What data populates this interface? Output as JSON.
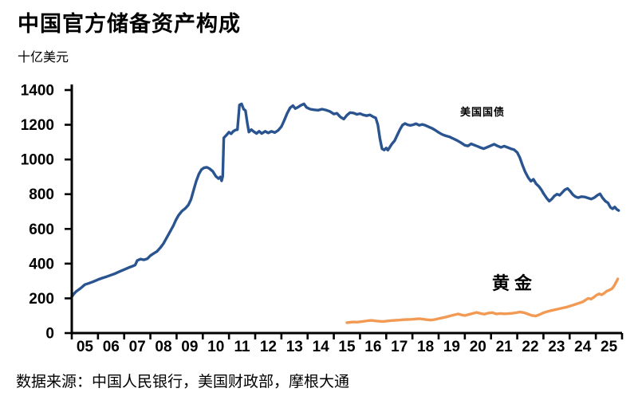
{
  "header": {
    "title": "中国官方储备资产构成",
    "unit_label": "十亿美元"
  },
  "footer": {
    "source": "数据来源：中国人民银行，美国财政部，摩根大通"
  },
  "colors": {
    "us_treasuries_line": "#2a5490",
    "gold_line": "#f29a54",
    "axis": "#000000",
    "text": "#000000",
    "background": "#ffffff"
  },
  "chart_data": {
    "type": "line",
    "title": "中国官方储备资产构成",
    "ylabel": "十亿美元",
    "ylim": [
      0,
      1400
    ],
    "y_ticks": [
      0,
      200,
      400,
      600,
      800,
      1000,
      1200,
      1400
    ],
    "x_tick_labels": [
      "05",
      "06",
      "07",
      "08",
      "09",
      "10",
      "11",
      "12",
      "13",
      "14",
      "15",
      "16",
      "17",
      "18",
      "19",
      "20",
      "21",
      "22",
      "23",
      "24",
      "25"
    ],
    "x_range_years": [
      2005,
      2026
    ],
    "grid": false,
    "legend_position": "inline-labels",
    "series": [
      {
        "name": "美国国债",
        "data_name": "us-treasuries-line",
        "color": "#2a5490",
        "points": [
          [
            2005.0,
            210
          ],
          [
            2005.08,
            226
          ],
          [
            2005.17,
            240
          ],
          [
            2005.33,
            257
          ],
          [
            2005.5,
            279
          ],
          [
            2005.67,
            288
          ],
          [
            2005.83,
            297
          ],
          [
            2006.0,
            308
          ],
          [
            2006.17,
            317
          ],
          [
            2006.33,
            325
          ],
          [
            2006.5,
            334
          ],
          [
            2006.67,
            344
          ],
          [
            2006.83,
            355
          ],
          [
            2007.0,
            366
          ],
          [
            2007.17,
            377
          ],
          [
            2007.33,
            386
          ],
          [
            2007.42,
            392
          ],
          [
            2007.5,
            418
          ],
          [
            2007.62,
            426
          ],
          [
            2007.75,
            422
          ],
          [
            2007.88,
            428
          ],
          [
            2008.0,
            446
          ],
          [
            2008.12,
            458
          ],
          [
            2008.25,
            470
          ],
          [
            2008.38,
            492
          ],
          [
            2008.5,
            516
          ],
          [
            2008.62,
            548
          ],
          [
            2008.75,
            584
          ],
          [
            2008.88,
            620
          ],
          [
            2008.97,
            650
          ],
          [
            2009.08,
            680
          ],
          [
            2009.2,
            702
          ],
          [
            2009.33,
            718
          ],
          [
            2009.45,
            738
          ],
          [
            2009.55,
            770
          ],
          [
            2009.65,
            824
          ],
          [
            2009.75,
            876
          ],
          [
            2009.85,
            916
          ],
          [
            2009.95,
            942
          ],
          [
            2010.05,
            952
          ],
          [
            2010.15,
            955
          ],
          [
            2010.25,
            948
          ],
          [
            2010.38,
            932
          ],
          [
            2010.5,
            903
          ],
          [
            2010.6,
            890
          ],
          [
            2010.67,
            899
          ],
          [
            2010.72,
            877
          ],
          [
            2010.76,
            904
          ],
          [
            2010.8,
            1124
          ],
          [
            2010.9,
            1140
          ],
          [
            2011.0,
            1157
          ],
          [
            2011.08,
            1148
          ],
          [
            2011.17,
            1163
          ],
          [
            2011.25,
            1170
          ],
          [
            2011.32,
            1172
          ],
          [
            2011.4,
            1314
          ],
          [
            2011.48,
            1320
          ],
          [
            2011.56,
            1290
          ],
          [
            2011.63,
            1282
          ],
          [
            2011.7,
            1210
          ],
          [
            2011.76,
            1158
          ],
          [
            2011.85,
            1172
          ],
          [
            2011.95,
            1160
          ],
          [
            2012.05,
            1150
          ],
          [
            2012.15,
            1162
          ],
          [
            2012.25,
            1150
          ],
          [
            2012.38,
            1162
          ],
          [
            2012.5,
            1153
          ],
          [
            2012.62,
            1162
          ],
          [
            2012.75,
            1155
          ],
          [
            2012.88,
            1168
          ],
          [
            2013.0,
            1190
          ],
          [
            2013.1,
            1222
          ],
          [
            2013.22,
            1266
          ],
          [
            2013.33,
            1297
          ],
          [
            2013.44,
            1310
          ],
          [
            2013.53,
            1293
          ],
          [
            2013.62,
            1300
          ],
          [
            2013.74,
            1312
          ],
          [
            2013.86,
            1320
          ],
          [
            2013.96,
            1300
          ],
          [
            2014.1,
            1290
          ],
          [
            2014.25,
            1286
          ],
          [
            2014.4,
            1284
          ],
          [
            2014.55,
            1290
          ],
          [
            2014.7,
            1285
          ],
          [
            2014.85,
            1277
          ],
          [
            2015.0,
            1262
          ],
          [
            2015.12,
            1266
          ],
          [
            2015.25,
            1245
          ],
          [
            2015.38,
            1233
          ],
          [
            2015.5,
            1255
          ],
          [
            2015.62,
            1270
          ],
          [
            2015.75,
            1268
          ],
          [
            2015.88,
            1260
          ],
          [
            2016.0,
            1264
          ],
          [
            2016.12,
            1257
          ],
          [
            2016.25,
            1252
          ],
          [
            2016.38,
            1257
          ],
          [
            2016.5,
            1246
          ],
          [
            2016.6,
            1240
          ],
          [
            2016.68,
            1200
          ],
          [
            2016.76,
            1120
          ],
          [
            2016.84,
            1062
          ],
          [
            2016.92,
            1055
          ],
          [
            2017.0,
            1066
          ],
          [
            2017.06,
            1054
          ],
          [
            2017.14,
            1072
          ],
          [
            2017.22,
            1090
          ],
          [
            2017.32,
            1108
          ],
          [
            2017.42,
            1140
          ],
          [
            2017.52,
            1172
          ],
          [
            2017.62,
            1198
          ],
          [
            2017.72,
            1207
          ],
          [
            2017.82,
            1200
          ],
          [
            2017.92,
            1196
          ],
          [
            2018.02,
            1200
          ],
          [
            2018.14,
            1206
          ],
          [
            2018.26,
            1197
          ],
          [
            2018.38,
            1202
          ],
          [
            2018.5,
            1196
          ],
          [
            2018.62,
            1188
          ],
          [
            2018.74,
            1180
          ],
          [
            2018.86,
            1170
          ],
          [
            2019.0,
            1156
          ],
          [
            2019.14,
            1144
          ],
          [
            2019.28,
            1136
          ],
          [
            2019.42,
            1130
          ],
          [
            2019.56,
            1120
          ],
          [
            2019.7,
            1110
          ],
          [
            2019.84,
            1098
          ],
          [
            2020.0,
            1082
          ],
          [
            2020.12,
            1078
          ],
          [
            2020.24,
            1090
          ],
          [
            2020.36,
            1083
          ],
          [
            2020.48,
            1076
          ],
          [
            2020.6,
            1068
          ],
          [
            2020.72,
            1062
          ],
          [
            2020.84,
            1070
          ],
          [
            2021.0,
            1080
          ],
          [
            2021.12,
            1088
          ],
          [
            2021.25,
            1078
          ],
          [
            2021.38,
            1070
          ],
          [
            2021.5,
            1077
          ],
          [
            2021.62,
            1070
          ],
          [
            2021.75,
            1062
          ],
          [
            2021.88,
            1056
          ],
          [
            2022.0,
            1040
          ],
          [
            2022.1,
            1010
          ],
          [
            2022.2,
            968
          ],
          [
            2022.3,
            930
          ],
          [
            2022.42,
            895
          ],
          [
            2022.52,
            875
          ],
          [
            2022.62,
            886
          ],
          [
            2022.72,
            860
          ],
          [
            2022.82,
            846
          ],
          [
            2022.92,
            826
          ],
          [
            2023.02,
            800
          ],
          [
            2023.12,
            778
          ],
          [
            2023.22,
            760
          ],
          [
            2023.32,
            772
          ],
          [
            2023.42,
            790
          ],
          [
            2023.52,
            800
          ],
          [
            2023.62,
            794
          ],
          [
            2023.72,
            810
          ],
          [
            2023.82,
            826
          ],
          [
            2023.92,
            833
          ],
          [
            2024.02,
            818
          ],
          [
            2024.12,
            798
          ],
          [
            2024.22,
            786
          ],
          [
            2024.32,
            780
          ],
          [
            2024.45,
            786
          ],
          [
            2024.58,
            784
          ],
          [
            2024.7,
            778
          ],
          [
            2024.82,
            772
          ],
          [
            2024.94,
            780
          ],
          [
            2025.06,
            794
          ],
          [
            2025.16,
            802
          ],
          [
            2025.26,
            778
          ],
          [
            2025.36,
            760
          ],
          [
            2025.46,
            750
          ],
          [
            2025.56,
            724
          ],
          [
            2025.64,
            716
          ],
          [
            2025.72,
            726
          ],
          [
            2025.8,
            713
          ],
          [
            2025.87,
            706
          ]
        ]
      },
      {
        "name": "黄金",
        "data_name": "gold-line",
        "color": "#f29a54",
        "points": [
          [
            2015.5,
            60
          ],
          [
            2015.62,
            62
          ],
          [
            2015.75,
            64
          ],
          [
            2015.88,
            63
          ],
          [
            2016.0,
            65
          ],
          [
            2016.15,
            68
          ],
          [
            2016.3,
            71
          ],
          [
            2016.45,
            73
          ],
          [
            2016.6,
            70
          ],
          [
            2016.75,
            68
          ],
          [
            2016.9,
            67
          ],
          [
            2017.05,
            70
          ],
          [
            2017.2,
            72
          ],
          [
            2017.35,
            74
          ],
          [
            2017.5,
            75
          ],
          [
            2017.65,
            77
          ],
          [
            2017.8,
            78
          ],
          [
            2017.95,
            79
          ],
          [
            2018.1,
            81
          ],
          [
            2018.25,
            83
          ],
          [
            2018.4,
            80
          ],
          [
            2018.55,
            77
          ],
          [
            2018.7,
            75
          ],
          [
            2018.85,
            78
          ],
          [
            2019.0,
            83
          ],
          [
            2019.15,
            88
          ],
          [
            2019.3,
            93
          ],
          [
            2019.45,
            99
          ],
          [
            2019.6,
            105
          ],
          [
            2019.75,
            110
          ],
          [
            2019.88,
            104
          ],
          [
            2020.0,
            101
          ],
          [
            2020.15,
            107
          ],
          [
            2020.3,
            113
          ],
          [
            2020.45,
            119
          ],
          [
            2020.6,
            113
          ],
          [
            2020.75,
            109
          ],
          [
            2020.9,
            115
          ],
          [
            2021.05,
            118
          ],
          [
            2021.2,
            110
          ],
          [
            2021.35,
            113
          ],
          [
            2021.5,
            111
          ],
          [
            2021.65,
            112
          ],
          [
            2021.8,
            114
          ],
          [
            2021.95,
            117
          ],
          [
            2022.1,
            121
          ],
          [
            2022.25,
            118
          ],
          [
            2022.4,
            110
          ],
          [
            2022.55,
            102
          ],
          [
            2022.7,
            98
          ],
          [
            2022.85,
            106
          ],
          [
            2023.0,
            117
          ],
          [
            2023.15,
            124
          ],
          [
            2023.3,
            130
          ],
          [
            2023.45,
            135
          ],
          [
            2023.6,
            140
          ],
          [
            2023.75,
            145
          ],
          [
            2023.9,
            150
          ],
          [
            2024.05,
            157
          ],
          [
            2024.2,
            165
          ],
          [
            2024.35,
            172
          ],
          [
            2024.5,
            180
          ],
          [
            2024.62,
            192
          ],
          [
            2024.72,
            200
          ],
          [
            2024.82,
            196
          ],
          [
            2024.92,
            206
          ],
          [
            2025.02,
            218
          ],
          [
            2025.12,
            226
          ],
          [
            2025.22,
            221
          ],
          [
            2025.32,
            230
          ],
          [
            2025.42,
            242
          ],
          [
            2025.52,
            248
          ],
          [
            2025.62,
            256
          ],
          [
            2025.7,
            272
          ],
          [
            2025.78,
            295
          ],
          [
            2025.84,
            312
          ]
        ]
      }
    ]
  }
}
